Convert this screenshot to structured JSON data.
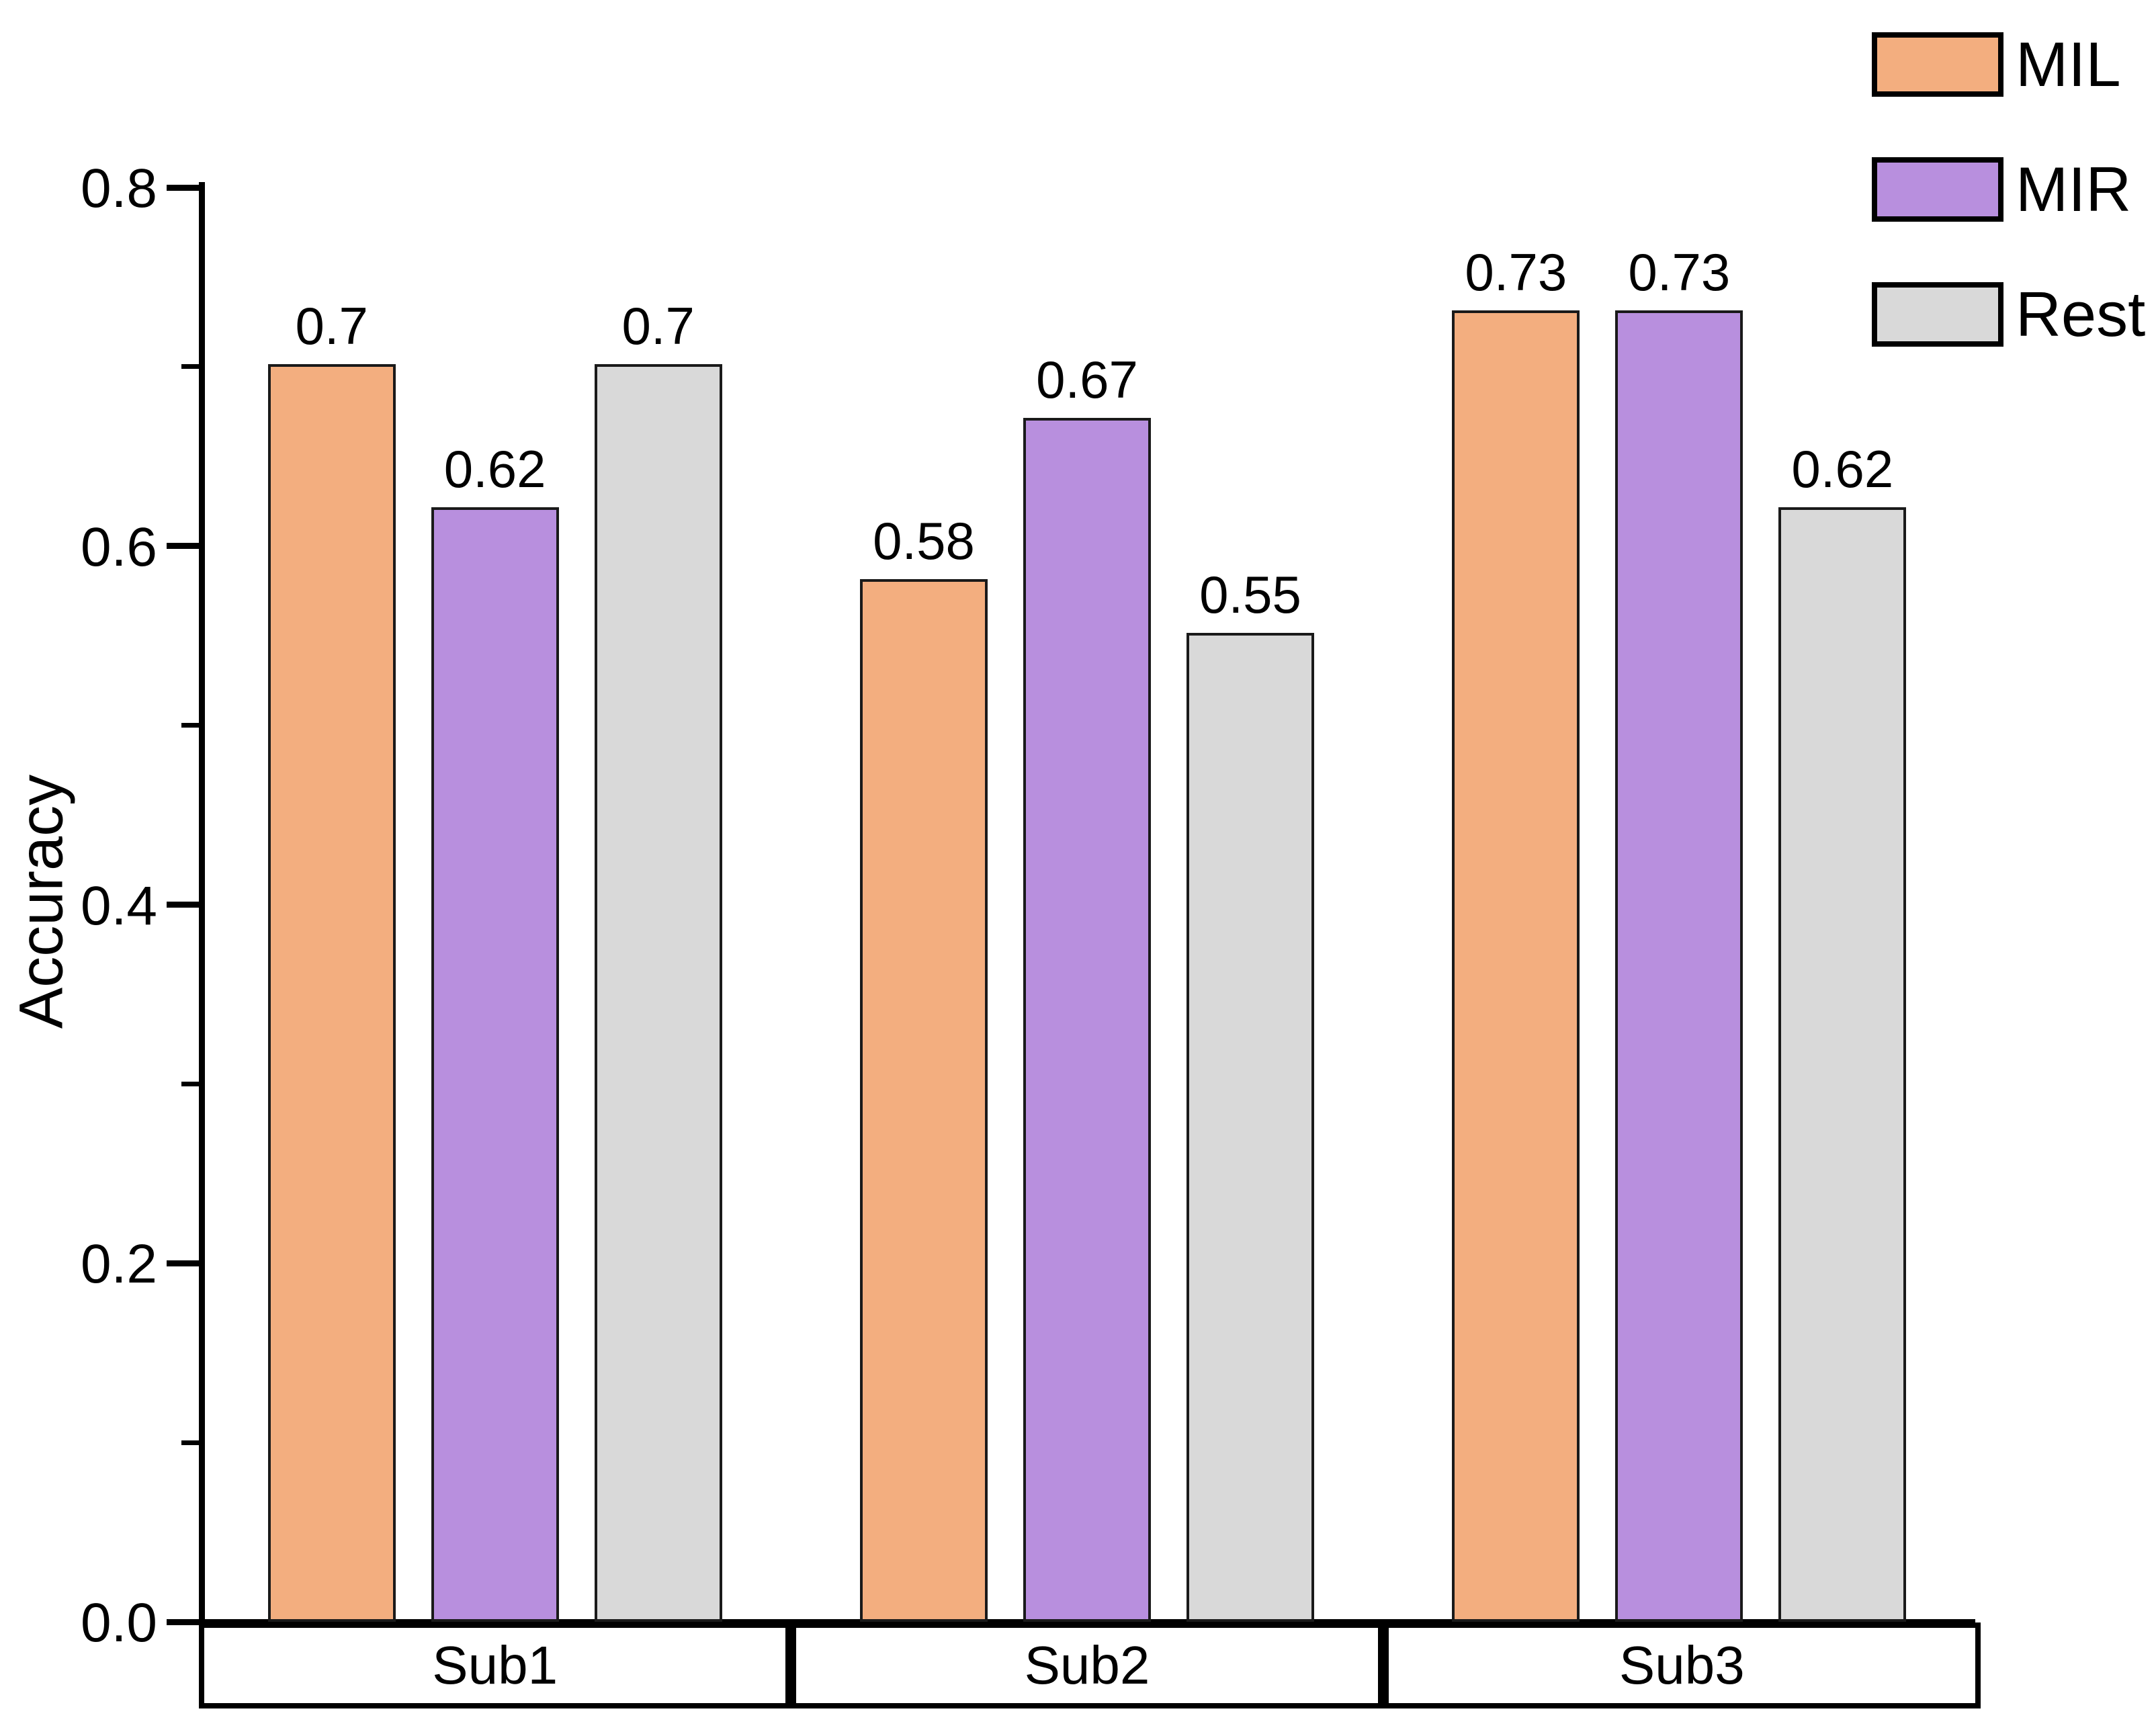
{
  "chart_data": {
    "type": "bar",
    "title": "",
    "ylabel": "Accuracy",
    "xlabel": "",
    "ylim": [
      0.0,
      0.8
    ],
    "ytick_major": [
      0.0,
      0.2,
      0.4,
      0.6,
      0.8
    ],
    "ytick_major_labels": [
      "0.0",
      "0.2",
      "0.4",
      "0.6",
      "0.8"
    ],
    "ytick_minor": [
      0.1,
      0.3,
      0.5,
      0.7
    ],
    "grid": "off",
    "legend_position": "top-right",
    "categories": [
      "Sub1",
      "Sub2",
      "Sub3"
    ],
    "series": [
      {
        "name": "MIL",
        "color": "#F3AE7F",
        "values": [
          0.7,
          0.58,
          0.73
        ],
        "labels": [
          "0.7",
          "0.58",
          "0.73"
        ]
      },
      {
        "name": "MIR",
        "color": "#B88FDE",
        "values": [
          0.62,
          0.67,
          0.73
        ],
        "labels": [
          "0.62",
          "0.67",
          "0.73"
        ]
      },
      {
        "name": "Rest",
        "color": "#D9D9D9",
        "values": [
          0.7,
          0.55,
          0.62
        ],
        "labels": [
          "0.7",
          "0.55",
          "0.62"
        ]
      }
    ],
    "bar_edge_color": "#1a1a1a",
    "axis_color": "#000000",
    "text_color": "#000000"
  }
}
